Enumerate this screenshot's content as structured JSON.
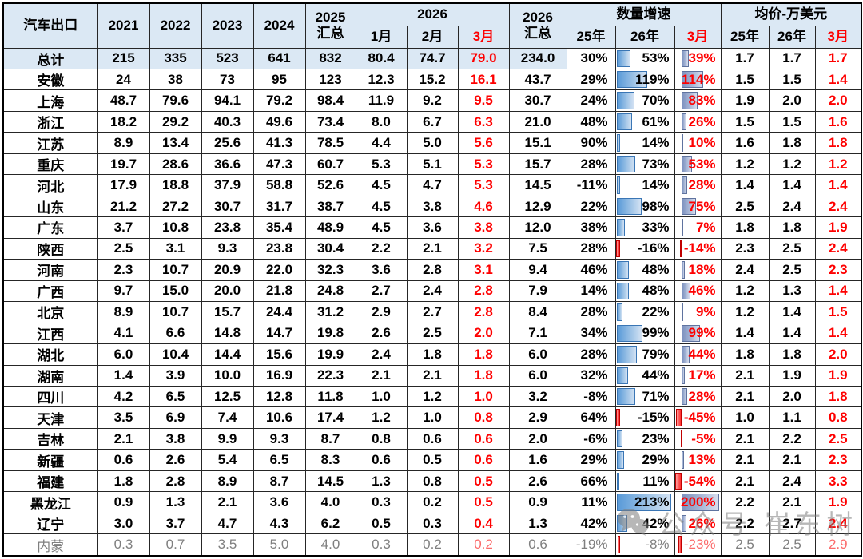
{
  "chart_data": {
    "type": "table",
    "corner_label": "汽车出口",
    "col_headers": {
      "years": [
        "2021",
        "2022",
        "2023",
        "2024"
      ],
      "total2025": [
        "2025",
        "汇总"
      ],
      "group2026": "2026",
      "months": [
        "1月",
        "2月",
        "3月"
      ],
      "total2026": [
        "2026",
        "汇总"
      ],
      "growth_group": "数量增速",
      "growth_subs": [
        "25年",
        "26年",
        "3月"
      ],
      "price_group": "均价-万美元",
      "price_subs": [
        "25年",
        "26年",
        "3月"
      ]
    },
    "column_meaning": [
      "2021",
      "2022",
      "2023",
      "2024",
      "2025汇总",
      "2026-1月",
      "2026-2月",
      "2026-3月",
      "2026汇总",
      "增速25年",
      "增速26年",
      "增速3月",
      "均价25年",
      "均价26年",
      "均价3月"
    ],
    "bar_scales": {
      "g26": {
        "min": -16,
        "max": 213
      },
      "g3": {
        "min": -54,
        "max": 200
      }
    },
    "rows": [
      {
        "name": "总计",
        "total": true,
        "v": [
          "215",
          "335",
          "523",
          "641",
          "832",
          "80.4",
          "74.7",
          "79.0",
          "234.0",
          "30%",
          "53%",
          "39%",
          "1.7",
          "1.7",
          "1.7"
        ]
      },
      {
        "name": "安徽",
        "v": [
          "24",
          "38",
          "73",
          "95",
          "123",
          "12.3",
          "15.2",
          "16.1",
          "43.7",
          "29%",
          "119%",
          "114%",
          "1.5",
          "1.5",
          "1.4"
        ]
      },
      {
        "name": "上海",
        "v": [
          "48.7",
          "79.6",
          "94.1",
          "79.2",
          "98.4",
          "11.9",
          "9.2",
          "9.5",
          "30.7",
          "24%",
          "70%",
          "83%",
          "1.9",
          "2.0",
          "2.0"
        ]
      },
      {
        "name": "浙江",
        "v": [
          "18.2",
          "29.2",
          "40.3",
          "49.6",
          "73.4",
          "8.0",
          "6.7",
          "6.3",
          "21.0",
          "48%",
          "61%",
          "26%",
          "1.5",
          "1.5",
          "1.6"
        ]
      },
      {
        "name": "江苏",
        "v": [
          "8.9",
          "13.4",
          "25.6",
          "41.3",
          "78.5",
          "4.4",
          "5.0",
          "5.6",
          "15.1",
          "90%",
          "14%",
          "10%",
          "1.6",
          "1.8",
          "1.8"
        ]
      },
      {
        "name": "重庆",
        "v": [
          "19.7",
          "28.6",
          "36.6",
          "47.3",
          "60.7",
          "5.3",
          "5.1",
          "5.3",
          "15.7",
          "28%",
          "73%",
          "53%",
          "1.2",
          "1.2",
          "1.2"
        ]
      },
      {
        "name": "河北",
        "v": [
          "17.9",
          "18.8",
          "37.9",
          "58.8",
          "52.6",
          "4.5",
          "4.7",
          "5.3",
          "14.5",
          "-11%",
          "14%",
          "28%",
          "1.4",
          "1.4",
          "1.4"
        ]
      },
      {
        "name": "山东",
        "v": [
          "21.2",
          "27.2",
          "30.7",
          "31.7",
          "38.7",
          "4.5",
          "3.8",
          "4.6",
          "12.9",
          "22%",
          "98%",
          "75%",
          "2.5",
          "2.4",
          "2.4"
        ]
      },
      {
        "name": "广东",
        "v": [
          "3.7",
          "10.8",
          "23.8",
          "35.4",
          "48.9",
          "4.5",
          "3.6",
          "3.8",
          "12.0",
          "38%",
          "33%",
          "7%",
          "1.8",
          "1.8",
          "1.9"
        ]
      },
      {
        "name": "陕西",
        "v": [
          "2.5",
          "3.1",
          "9.3",
          "23.8",
          "30.4",
          "2.2",
          "2.1",
          "3.2",
          "7.5",
          "28%",
          "-16%",
          "-14%",
          "2.3",
          "2.5",
          "2.4"
        ]
      },
      {
        "name": "河南",
        "v": [
          "2.3",
          "10.7",
          "20.9",
          "22.0",
          "32.3",
          "3.6",
          "2.8",
          "3.1",
          "9.4",
          "46%",
          "48%",
          "18%",
          "2.4",
          "2.5",
          "2.3"
        ]
      },
      {
        "name": "广西",
        "v": [
          "9.7",
          "15.0",
          "20.0",
          "21.8",
          "24.8",
          "2.7",
          "2.4",
          "2.8",
          "7.9",
          "14%",
          "48%",
          "46%",
          "1.2",
          "1.3",
          "1.4"
        ]
      },
      {
        "name": "北京",
        "v": [
          "8.9",
          "10.7",
          "15.7",
          "24.4",
          "31.2",
          "2.9",
          "2.7",
          "2.8",
          "8.4",
          "28%",
          "22%",
          "9%",
          "1.2",
          "1.4",
          "1.5"
        ]
      },
      {
        "name": "江西",
        "v": [
          "4.1",
          "6.6",
          "14.8",
          "14.7",
          "19.8",
          "2.6",
          "2.5",
          "2.0",
          "7.1",
          "34%",
          "99%",
          "99%",
          "1.4",
          "1.4",
          "1.4"
        ]
      },
      {
        "name": "湖北",
        "v": [
          "6.0",
          "10.4",
          "14.4",
          "15.6",
          "19.9",
          "2.4",
          "1.8",
          "1.8",
          "6.0",
          "28%",
          "79%",
          "44%",
          "1.8",
          "1.8",
          "2.0"
        ]
      },
      {
        "name": "湖南",
        "v": [
          "1.4",
          "3.9",
          "10.0",
          "16.9",
          "22.3",
          "2.1",
          "2.1",
          "1.8",
          "6.0",
          "32%",
          "44%",
          "17%",
          "2.1",
          "1.9",
          "1.9"
        ]
      },
      {
        "name": "四川",
        "v": [
          "4.2",
          "6.5",
          "12.5",
          "12.8",
          "11.8",
          "1.0",
          "1.2",
          "1.0",
          "3.2",
          "-8%",
          "71%",
          "28%",
          "2.1",
          "2.0",
          "1.8"
        ]
      },
      {
        "name": "天津",
        "v": [
          "3.5",
          "6.9",
          "7.4",
          "10.6",
          "17.4",
          "1.2",
          "1.0",
          "0.8",
          "2.9",
          "64%",
          "-15%",
          "-45%",
          "1.0",
          "1.1",
          "0.8"
        ]
      },
      {
        "name": "吉林",
        "v": [
          "2.1",
          "3.8",
          "9.9",
          "9.3",
          "8.7",
          "0.8",
          "0.6",
          "0.6",
          "2.0",
          "-6%",
          "23%",
          "-5%",
          "2.1",
          "2.2",
          "2.5"
        ]
      },
      {
        "name": "新疆",
        "v": [
          "0.6",
          "2.6",
          "5.4",
          "6.5",
          "8.3",
          "0.6",
          "0.5",
          "0.6",
          "1.6",
          "29%",
          "29%",
          "13%",
          "2.1",
          "2.1",
          "2.3"
        ]
      },
      {
        "name": "福建",
        "v": [
          "1.8",
          "2.8",
          "8.9",
          "8.7",
          "14.5",
          "1.3",
          "0.8",
          "0.5",
          "2.6",
          "66%",
          "11%",
          "-54%",
          "2.1",
          "2.4",
          "3.3"
        ]
      },
      {
        "name": "黑龙江",
        "v": [
          "0.9",
          "1.3",
          "2.1",
          "3.6",
          "4.0",
          "0.3",
          "0.2",
          "0.5",
          "0.9",
          "11%",
          "213%",
          "200%",
          "2.2",
          "2.1",
          "1.9"
        ]
      },
      {
        "name": "辽宁",
        "v": [
          "3.0",
          "3.7",
          "4.7",
          "4.3",
          "6.2",
          "0.5",
          "0.3",
          "0.4",
          "1.3",
          "42%",
          "42%",
          "26%",
          "2.2",
          "2.7",
          "2.4"
        ]
      },
      {
        "name": "内蒙",
        "muted": true,
        "v": [
          "0.3",
          "0.7",
          "3.5",
          "5.0",
          "4.0",
          "0.3",
          "0.2",
          "0.2",
          "0.6",
          "-19%",
          "-8%",
          "-23%",
          "2.5",
          "2.5",
          "2.9"
        ]
      }
    ]
  },
  "watermark": {
    "icon": "wechat-icon",
    "text": "公众号 崔东树"
  },
  "colors": {
    "header_bg": "#dbe8f4",
    "red_text": "#fe0000",
    "muted_text": "#7f7f7f",
    "bar_blue": "#599ad8",
    "bar_blue_border": "#3a76b5",
    "bar_gray_blue": "#7e93c0",
    "bar_red": "#ff2d2d",
    "bar_red_border": "#c00000",
    "grid_line": "#262626"
  }
}
